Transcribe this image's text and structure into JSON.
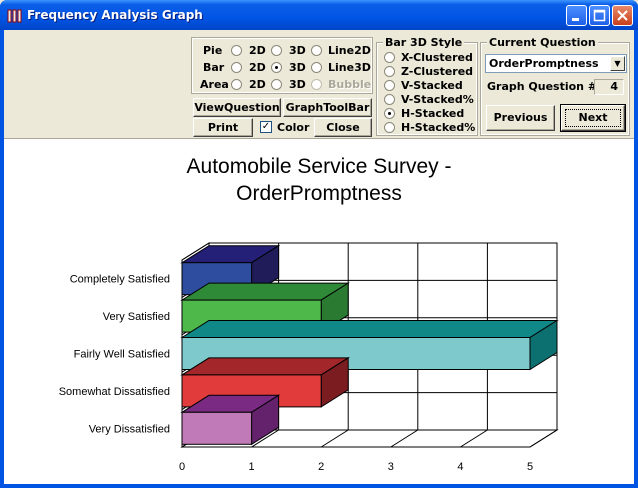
{
  "window": {
    "title": "Frequency Analysis Graph"
  },
  "chart_type_group": {
    "rows": [
      {
        "label": "Pie",
        "options": [
          {
            "label": "2D",
            "checked": false
          },
          {
            "label": "3D",
            "checked": false
          },
          {
            "label": "Line2D",
            "checked": false,
            "disabled": false
          }
        ]
      },
      {
        "label": "Bar",
        "options": [
          {
            "label": "2D",
            "checked": false
          },
          {
            "label": "3D",
            "checked": true
          },
          {
            "label": "Line3D",
            "checked": false,
            "disabled": false
          }
        ]
      },
      {
        "label": "Area",
        "options": [
          {
            "label": "2D",
            "checked": false
          },
          {
            "label": "3D",
            "checked": false
          },
          {
            "label": "Bubble",
            "checked": false,
            "disabled": true
          }
        ]
      }
    ]
  },
  "buttons": {
    "view_question": "ViewQuestion",
    "graph_toolbar": "GraphToolBar",
    "print": "Print",
    "color": "Color",
    "color_checked": true,
    "close": "Close"
  },
  "bar3d_style": {
    "title": "Bar 3D Style",
    "options": [
      {
        "label": "X-Clustered",
        "checked": false
      },
      {
        "label": "Z-Clustered",
        "checked": false
      },
      {
        "label": "V-Stacked",
        "checked": false
      },
      {
        "label": "V-Stacked%",
        "checked": false
      },
      {
        "label": "H-Stacked",
        "checked": true
      },
      {
        "label": "H-Stacked%",
        "checked": false
      }
    ]
  },
  "current_question": {
    "title": "Current Question",
    "selected": "OrderPromptness",
    "graph_question_label": "Graph Question #",
    "graph_question_number": "4",
    "previous": "Previous",
    "next": "Next"
  },
  "chart_data": {
    "type": "bar",
    "orientation": "horizontal",
    "title_line1": "Automobile Service Survey -",
    "title_line2": "OrderPromptness",
    "categories": [
      "Completely Satisfied",
      "Very Satisfied",
      "Fairly Well Satisfied",
      "Somewhat Dissatisfied",
      "Very Dissatisfied"
    ],
    "values": [
      1,
      2,
      5,
      2,
      1
    ],
    "colors": [
      "#2e4d9e",
      "#4fb84a",
      "#7ec9cc",
      "#e23b3b",
      "#c07ab8"
    ],
    "top_colors": [
      "#241f77",
      "#2f8a38",
      "#108888",
      "#a3262a",
      "#7a2a82"
    ],
    "side_colors": [
      "#201c5a",
      "#2a7a32",
      "#0c7070",
      "#7a1c20",
      "#64226c"
    ],
    "xlim": [
      0,
      5
    ],
    "xticks": [
      "0",
      "1",
      "2",
      "3",
      "4",
      "5"
    ],
    "grid": true
  }
}
